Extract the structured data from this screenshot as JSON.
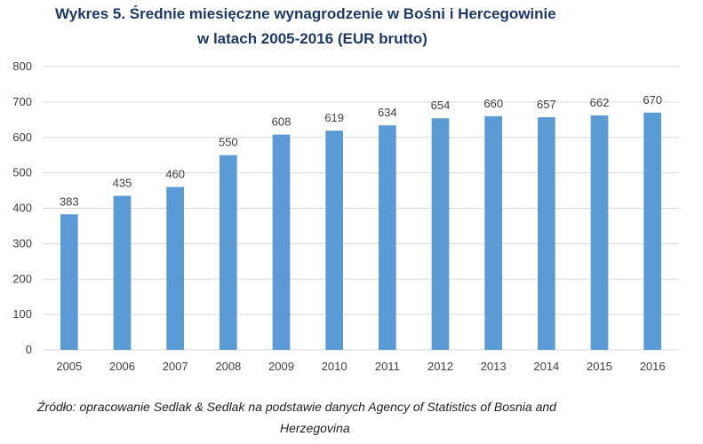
{
  "title_line1": "Wykres 5. Średnie miesięczne wynagrodzenie w Bośni i Hercegowinie",
  "title_line2": "w latach 2005-2016 (EUR brutto)",
  "source_line1": "Źródło: opracowanie Sedlak & Sedlak na podstawie danych Agency of Statistics of Bosnia and",
  "source_line2": "Herzegovina",
  "chart_data": {
    "type": "bar",
    "title": "Wykres 5. Średnie miesięczne wynagrodzenie w Bośni i Hercegowinie w latach 2005-2016 (EUR brutto)",
    "categories": [
      "2005",
      "2006",
      "2007",
      "2008",
      "2009",
      "2010",
      "2011",
      "2012",
      "2013",
      "2014",
      "2015",
      "2016"
    ],
    "values": [
      383,
      435,
      460,
      550,
      608,
      619,
      634,
      654,
      660,
      657,
      662,
      670
    ],
    "ylim": [
      0,
      800
    ],
    "yticks": [
      0,
      100,
      200,
      300,
      400,
      500,
      600,
      700,
      800
    ],
    "grid": true,
    "legend": "none",
    "data_labels": true,
    "bar_color": "#5b9bd5",
    "grid_color": "#d9d9d9"
  }
}
